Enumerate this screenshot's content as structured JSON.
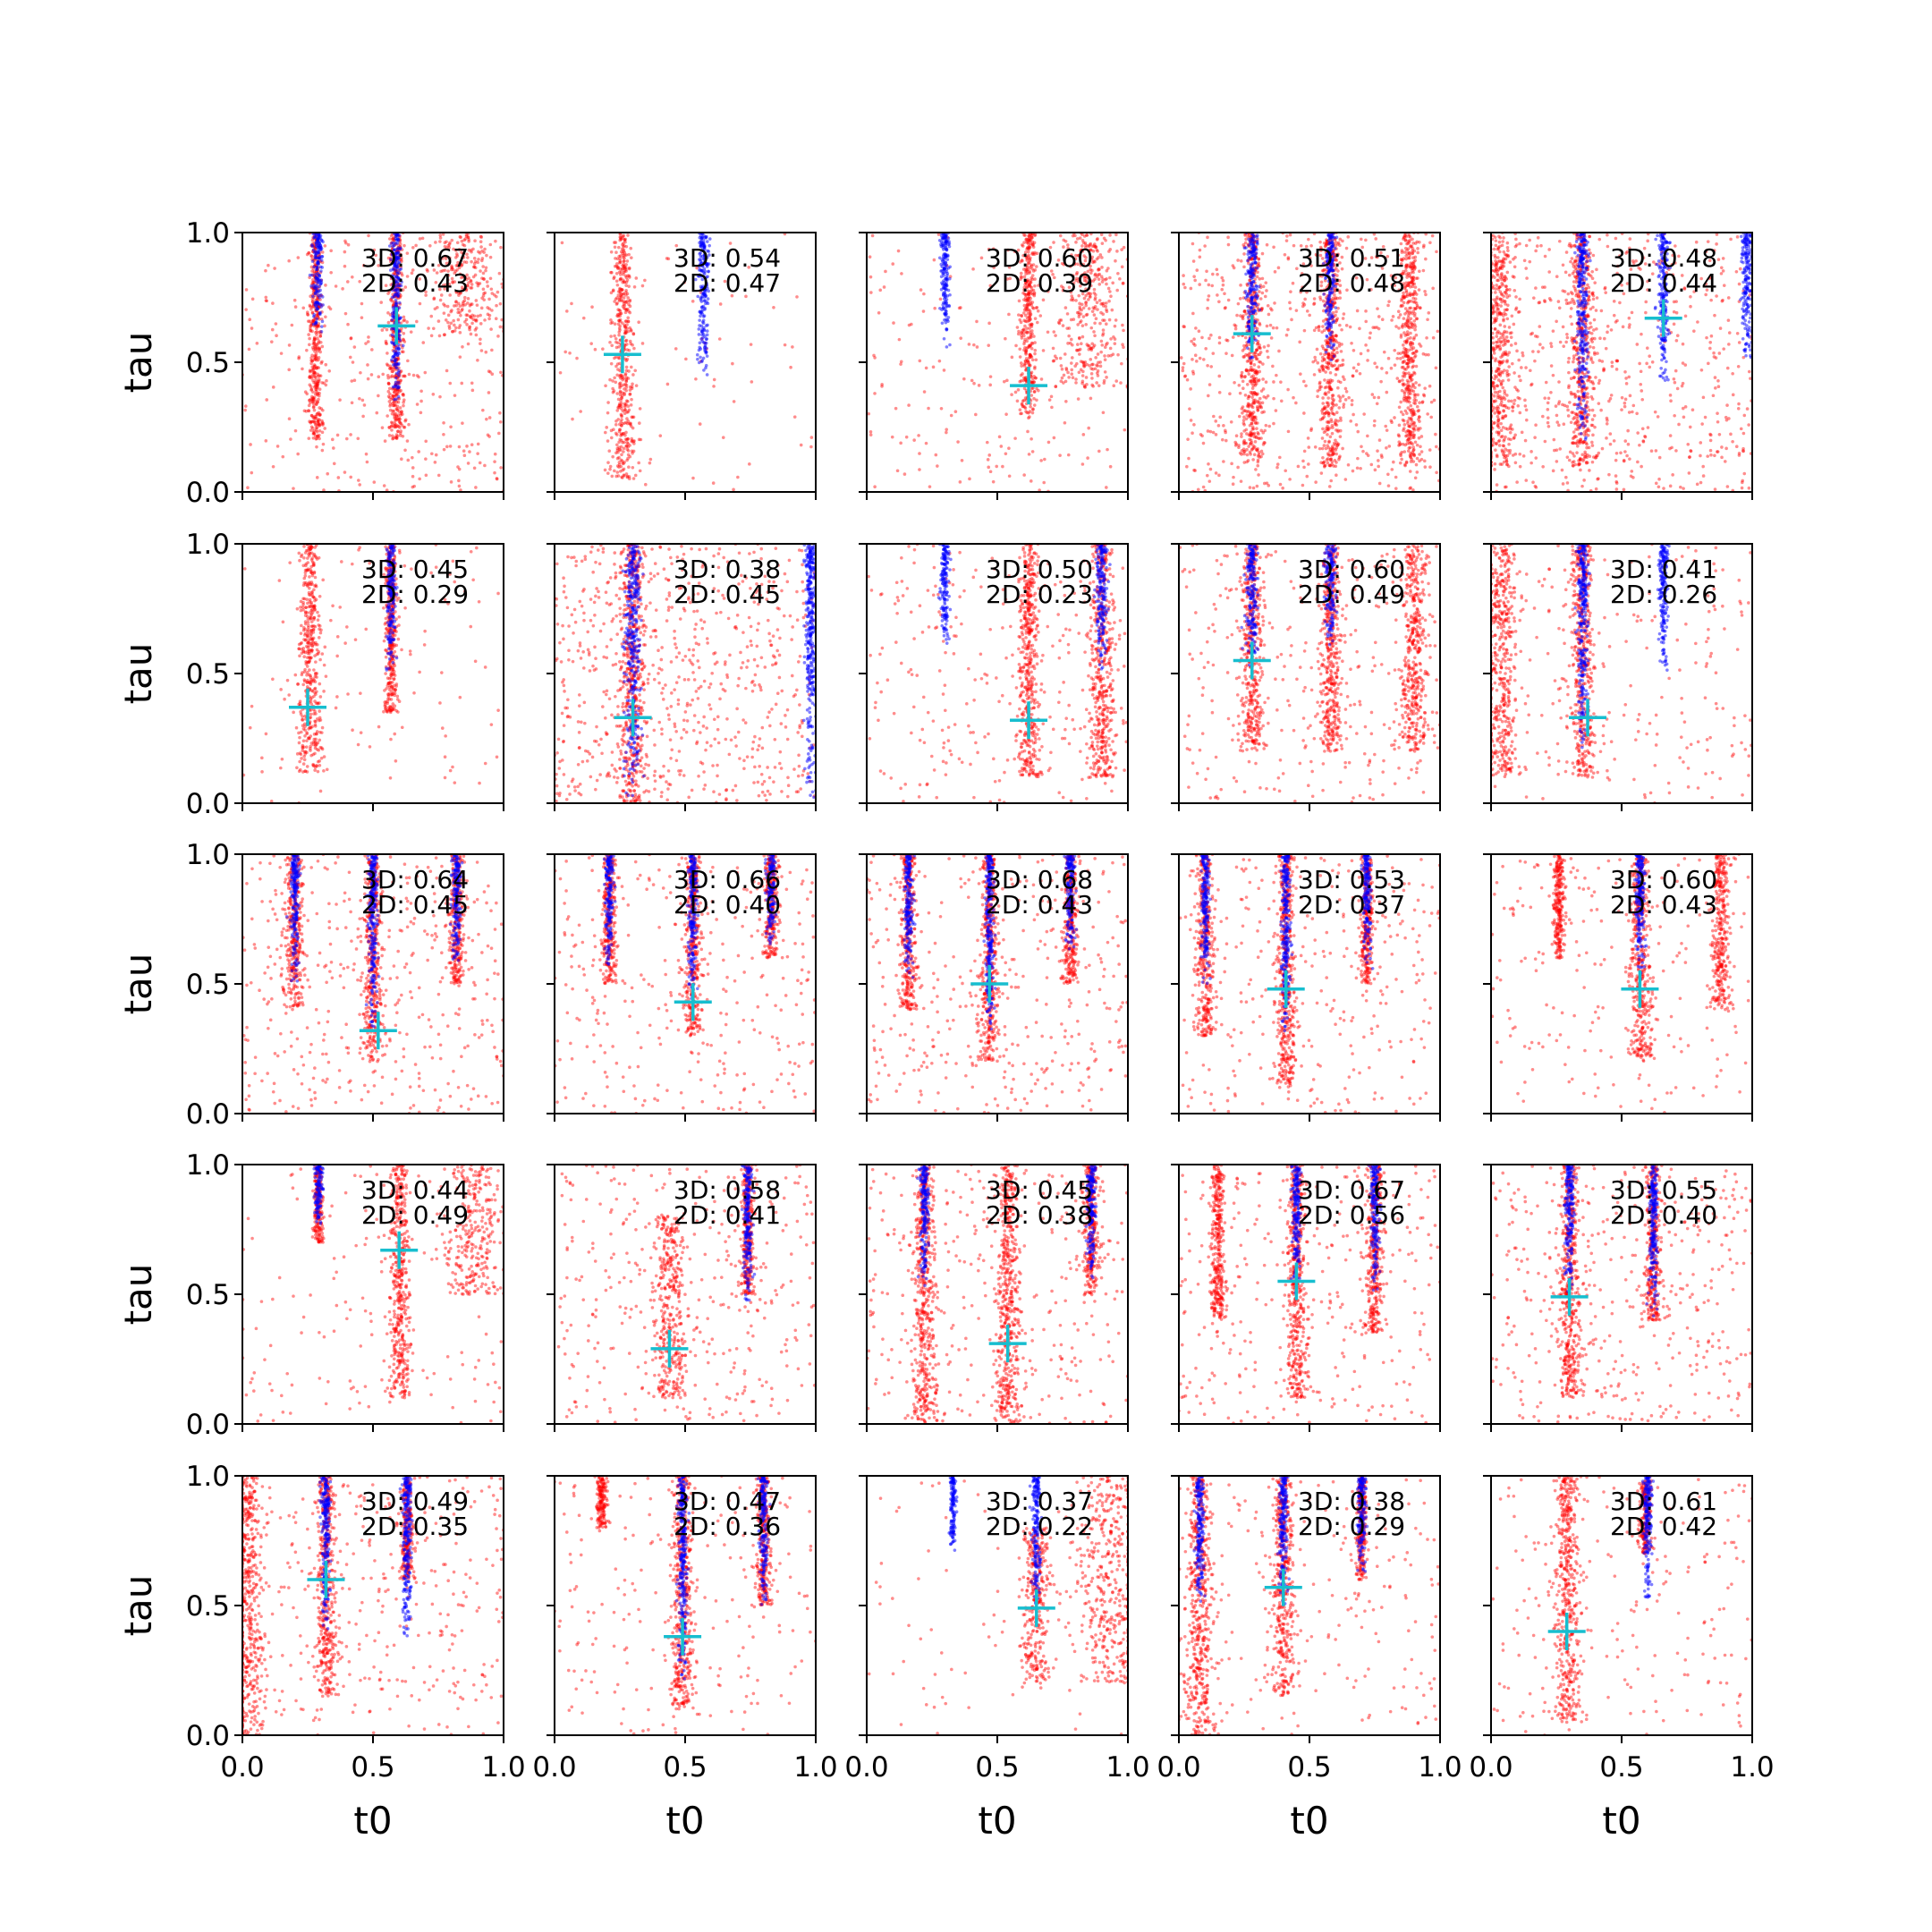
{
  "chart_data": {
    "type": "scatter",
    "layout": {
      "rows": 5,
      "cols": 5
    },
    "xlabel": "t0",
    "ylabel": "tau",
    "xlim": [
      0,
      1
    ],
    "ylim": [
      0,
      1
    ],
    "xticks": [
      "0.0",
      "0.5",
      "1.0"
    ],
    "yticks": [
      "0.0",
      "0.5",
      "1.0"
    ],
    "colors": {
      "posterior_red": "#ff0000",
      "posterior_blue": "#0000ff",
      "truth_marker": "#17becf"
    },
    "series": [
      "red scatter",
      "blue scatter",
      "truth marker (+)"
    ],
    "panels": [
      {
        "score_3d": "3D: 0.67",
        "score_2d": "2D: 0.43",
        "truth": [
          0.59,
          0.64
        ],
        "red_bands": [
          [
            0.59,
            0.2,
            1.0,
            0.012
          ],
          [
            0.28,
            0.2,
            1.0,
            0.01
          ],
          [
            0.85,
            0.6,
            1.0,
            0.06
          ]
        ],
        "blue_bands": [
          [
            0.29,
            0.6,
            1.0,
            0.01
          ],
          [
            0.59,
            0.3,
            1.0,
            0.008
          ]
        ],
        "bg": 0.45
      },
      {
        "score_3d": "3D: 0.54",
        "score_2d": "2D: 0.47",
        "truth": [
          0.26,
          0.53
        ],
        "red_bands": [
          [
            0.26,
            0.05,
            1.0,
            0.018
          ]
        ],
        "blue_bands": [
          [
            0.57,
            0.45,
            1.0,
            0.01
          ]
        ],
        "bg": 0.1
      },
      {
        "score_3d": "3D: 0.60",
        "score_2d": "2D: 0.39",
        "truth": [
          0.62,
          0.41
        ],
        "red_bands": [
          [
            0.62,
            0.3,
            1.0,
            0.014
          ],
          [
            0.85,
            0.4,
            1.0,
            0.05
          ]
        ],
        "blue_bands": [
          [
            0.3,
            0.55,
            1.0,
            0.008
          ]
        ],
        "bg": 0.3
      },
      {
        "score_3d": "3D: 0.51",
        "score_2d": "2D: 0.48",
        "truth": [
          0.28,
          0.61
        ],
        "red_bands": [
          [
            0.28,
            0.1,
            1.0,
            0.016
          ],
          [
            0.58,
            0.1,
            1.0,
            0.016
          ],
          [
            0.88,
            0.1,
            1.0,
            0.016
          ]
        ],
        "blue_bands": [
          [
            0.28,
            0.5,
            1.0,
            0.01
          ],
          [
            0.58,
            0.5,
            1.0,
            0.01
          ]
        ],
        "bg": 0.8
      },
      {
        "score_3d": "3D: 0.48",
        "score_2d": "2D: 0.44",
        "truth": [
          0.66,
          0.67
        ],
        "red_bands": [
          [
            0.03,
            0.1,
            1.0,
            0.025
          ],
          [
            0.35,
            0.1,
            1.0,
            0.02
          ]
        ],
        "blue_bands": [
          [
            0.35,
            0.2,
            1.0,
            0.01
          ],
          [
            0.66,
            0.4,
            1.0,
            0.01
          ],
          [
            0.98,
            0.5,
            1.0,
            0.01
          ]
        ],
        "bg": 0.8
      },
      {
        "score_3d": "3D: 0.45",
        "score_2d": "2D: 0.29",
        "truth": [
          0.25,
          0.37
        ],
        "red_bands": [
          [
            0.26,
            0.12,
            1.0,
            0.018
          ],
          [
            0.57,
            0.35,
            1.0,
            0.01
          ]
        ],
        "blue_bands": [
          [
            0.57,
            0.5,
            1.0,
            0.008
          ]
        ],
        "bg": 0.15
      },
      {
        "score_3d": "3D: 0.38",
        "score_2d": "2D: 0.45",
        "truth": [
          0.3,
          0.33
        ],
        "red_bands": [
          [
            0.3,
            0.0,
            1.0,
            0.02
          ]
        ],
        "blue_bands": [
          [
            0.3,
            0.0,
            1.0,
            0.015
          ],
          [
            0.98,
            0.0,
            1.0,
            0.01
          ]
        ],
        "bg": 1.0
      },
      {
        "score_3d": "3D: 0.50",
        "score_2d": "2D: 0.23",
        "truth": [
          0.62,
          0.32
        ],
        "red_bands": [
          [
            0.62,
            0.1,
            1.0,
            0.014
          ],
          [
            0.9,
            0.1,
            1.0,
            0.02
          ]
        ],
        "blue_bands": [
          [
            0.3,
            0.6,
            1.0,
            0.008
          ],
          [
            0.9,
            0.5,
            1.0,
            0.01
          ]
        ],
        "bg": 0.4
      },
      {
        "score_3d": "3D: 0.60",
        "score_2d": "2D: 0.49",
        "truth": [
          0.28,
          0.55
        ],
        "red_bands": [
          [
            0.28,
            0.2,
            1.0,
            0.016
          ],
          [
            0.58,
            0.2,
            1.0,
            0.016
          ],
          [
            0.9,
            0.2,
            1.0,
            0.02
          ]
        ],
        "blue_bands": [
          [
            0.28,
            0.5,
            1.0,
            0.01
          ],
          [
            0.58,
            0.6,
            1.0,
            0.01
          ]
        ],
        "bg": 0.45
      },
      {
        "score_3d": "3D: 0.41",
        "score_2d": "2D: 0.26",
        "truth": [
          0.37,
          0.33
        ],
        "red_bands": [
          [
            0.04,
            0.1,
            1.0,
            0.025
          ],
          [
            0.35,
            0.1,
            1.0,
            0.018
          ]
        ],
        "blue_bands": [
          [
            0.35,
            0.2,
            1.0,
            0.01
          ],
          [
            0.66,
            0.5,
            1.0,
            0.008
          ]
        ],
        "bg": 0.3
      },
      {
        "score_3d": "3D: 0.64",
        "score_2d": "2D: 0.45",
        "truth": [
          0.52,
          0.32
        ],
        "red_bands": [
          [
            0.2,
            0.4,
            1.0,
            0.014
          ],
          [
            0.5,
            0.2,
            1.0,
            0.014
          ],
          [
            0.82,
            0.5,
            1.0,
            0.012
          ]
        ],
        "blue_bands": [
          [
            0.2,
            0.5,
            1.0,
            0.008
          ],
          [
            0.5,
            0.3,
            1.0,
            0.008
          ],
          [
            0.82,
            0.55,
            1.0,
            0.008
          ]
        ],
        "bg": 0.55
      },
      {
        "score_3d": "3D: 0.66",
        "score_2d": "2D: 0.40",
        "truth": [
          0.53,
          0.43
        ],
        "red_bands": [
          [
            0.21,
            0.5,
            1.0,
            0.012
          ],
          [
            0.53,
            0.3,
            1.0,
            0.014
          ],
          [
            0.83,
            0.6,
            1.0,
            0.012
          ]
        ],
        "blue_bands": [
          [
            0.21,
            0.55,
            1.0,
            0.008
          ],
          [
            0.53,
            0.4,
            1.0,
            0.008
          ],
          [
            0.83,
            0.65,
            1.0,
            0.008
          ]
        ],
        "bg": 0.45
      },
      {
        "score_3d": "3D: 0.68",
        "score_2d": "2D: 0.43",
        "truth": [
          0.47,
          0.5
        ],
        "red_bands": [
          [
            0.16,
            0.4,
            1.0,
            0.012
          ],
          [
            0.47,
            0.2,
            1.0,
            0.014
          ],
          [
            0.78,
            0.5,
            1.0,
            0.012
          ]
        ],
        "blue_bands": [
          [
            0.16,
            0.5,
            1.0,
            0.008
          ],
          [
            0.47,
            0.3,
            1.0,
            0.008
          ],
          [
            0.78,
            0.6,
            1.0,
            0.008
          ]
        ],
        "bg": 0.5
      },
      {
        "score_3d": "3D: 0.53",
        "score_2d": "2D: 0.37",
        "truth": [
          0.41,
          0.48
        ],
        "red_bands": [
          [
            0.1,
            0.3,
            1.0,
            0.014
          ],
          [
            0.41,
            0.1,
            1.0,
            0.014
          ],
          [
            0.72,
            0.5,
            1.0,
            0.01
          ]
        ],
        "blue_bands": [
          [
            0.1,
            0.5,
            1.0,
            0.008
          ],
          [
            0.41,
            0.3,
            1.0,
            0.008
          ],
          [
            0.72,
            0.55,
            1.0,
            0.008
          ]
        ],
        "bg": 0.45
      },
      {
        "score_3d": "3D: 0.60",
        "score_2d": "2D: 0.43",
        "truth": [
          0.57,
          0.48
        ],
        "red_bands": [
          [
            0.57,
            0.2,
            1.0,
            0.016
          ],
          [
            0.88,
            0.4,
            1.0,
            0.014
          ],
          [
            0.26,
            0.6,
            1.0,
            0.01
          ]
        ],
        "blue_bands": [
          [
            0.57,
            0.5,
            1.0,
            0.008
          ]
        ],
        "bg": 0.3
      },
      {
        "score_3d": "3D: 0.44",
        "score_2d": "2D: 0.49",
        "truth": [
          0.6,
          0.67
        ],
        "red_bands": [
          [
            0.6,
            0.1,
            1.0,
            0.016
          ],
          [
            0.88,
            0.5,
            1.0,
            0.05
          ],
          [
            0.29,
            0.7,
            1.0,
            0.008
          ]
        ],
        "blue_bands": [
          [
            0.29,
            0.75,
            1.0,
            0.008
          ]
        ],
        "bg": 0.2
      },
      {
        "score_3d": "3D: 0.58",
        "score_2d": "2D: 0.41",
        "truth": [
          0.44,
          0.29
        ],
        "red_bands": [
          [
            0.44,
            0.1,
            0.8,
            0.025
          ],
          [
            0.74,
            0.5,
            1.0,
            0.01
          ]
        ],
        "blue_bands": [
          [
            0.74,
            0.45,
            1.0,
            0.008
          ]
        ],
        "bg": 0.5
      },
      {
        "score_3d": "3D: 0.45",
        "score_2d": "2D: 0.38",
        "truth": [
          0.54,
          0.31
        ],
        "red_bands": [
          [
            0.54,
            0.0,
            1.0,
            0.016
          ],
          [
            0.22,
            0.0,
            1.0,
            0.016
          ],
          [
            0.86,
            0.5,
            1.0,
            0.012
          ]
        ],
        "blue_bands": [
          [
            0.22,
            0.5,
            1.0,
            0.008
          ],
          [
            0.86,
            0.55,
            1.0,
            0.008
          ]
        ],
        "bg": 0.5
      },
      {
        "score_3d": "3D: 0.67",
        "score_2d": "2D: 0.56",
        "truth": [
          0.45,
          0.55
        ],
        "red_bands": [
          [
            0.45,
            0.1,
            1.0,
            0.014
          ],
          [
            0.75,
            0.35,
            1.0,
            0.014
          ],
          [
            0.15,
            0.4,
            1.0,
            0.01
          ]
        ],
        "blue_bands": [
          [
            0.45,
            0.5,
            1.0,
            0.008
          ],
          [
            0.75,
            0.5,
            1.0,
            0.008
          ]
        ],
        "bg": 0.45
      },
      {
        "score_3d": "3D: 0.55",
        "score_2d": "2D: 0.40",
        "truth": [
          0.3,
          0.49
        ],
        "red_bands": [
          [
            0.3,
            0.1,
            1.0,
            0.016
          ],
          [
            0.62,
            0.4,
            1.0,
            0.012
          ]
        ],
        "blue_bands": [
          [
            0.3,
            0.5,
            1.0,
            0.008
          ],
          [
            0.62,
            0.4,
            1.0,
            0.008
          ]
        ],
        "bg": 0.6
      },
      {
        "score_3d": "3D: 0.49",
        "score_2d": "2D: 0.35",
        "truth": [
          0.32,
          0.6
        ],
        "red_bands": [
          [
            0.02,
            0.0,
            1.0,
            0.025
          ],
          [
            0.32,
            0.15,
            1.0,
            0.014
          ],
          [
            0.63,
            0.6,
            1.0,
            0.01
          ]
        ],
        "blue_bands": [
          [
            0.32,
            0.4,
            1.0,
            0.008
          ],
          [
            0.63,
            0.35,
            1.0,
            0.008
          ]
        ],
        "bg": 0.5
      },
      {
        "score_3d": "3D: 0.47",
        "score_2d": "2D: 0.36",
        "truth": [
          0.49,
          0.38
        ],
        "red_bands": [
          [
            0.49,
            0.1,
            1.0,
            0.016
          ],
          [
            0.8,
            0.5,
            1.0,
            0.012
          ],
          [
            0.18,
            0.8,
            1.0,
            0.01
          ]
        ],
        "blue_bands": [
          [
            0.49,
            0.2,
            1.0,
            0.008
          ],
          [
            0.8,
            0.5,
            1.0,
            0.008
          ]
        ],
        "bg": 0.3
      },
      {
        "score_3d": "3D: 0.37",
        "score_2d": "2D: 0.22",
        "truth": [
          0.65,
          0.49
        ],
        "red_bands": [
          [
            0.65,
            0.2,
            0.8,
            0.02
          ],
          [
            0.92,
            0.2,
            1.0,
            0.05
          ]
        ],
        "blue_bands": [
          [
            0.65,
            0.5,
            1.0,
            0.008
          ],
          [
            0.33,
            0.7,
            1.0,
            0.006
          ]
        ],
        "bg": 0.1
      },
      {
        "score_3d": "3D: 0.38",
        "score_2d": "2D: 0.29",
        "truth": [
          0.4,
          0.57
        ],
        "red_bands": [
          [
            0.08,
            0.0,
            1.0,
            0.02
          ],
          [
            0.4,
            0.15,
            1.0,
            0.016
          ],
          [
            0.7,
            0.6,
            1.0,
            0.008
          ]
        ],
        "blue_bands": [
          [
            0.08,
            0.5,
            1.0,
            0.008
          ],
          [
            0.4,
            0.5,
            1.0,
            0.008
          ],
          [
            0.7,
            0.6,
            1.0,
            0.008
          ]
        ],
        "bg": 0.3
      },
      {
        "score_3d": "3D: 0.61",
        "score_2d": "2D: 0.42",
        "truth": [
          0.29,
          0.4
        ],
        "red_bands": [
          [
            0.29,
            0.05,
            1.0,
            0.018
          ],
          [
            0.59,
            0.7,
            1.0,
            0.01
          ]
        ],
        "blue_bands": [
          [
            0.6,
            0.5,
            1.0,
            0.008
          ]
        ],
        "bg": 0.3
      }
    ]
  }
}
